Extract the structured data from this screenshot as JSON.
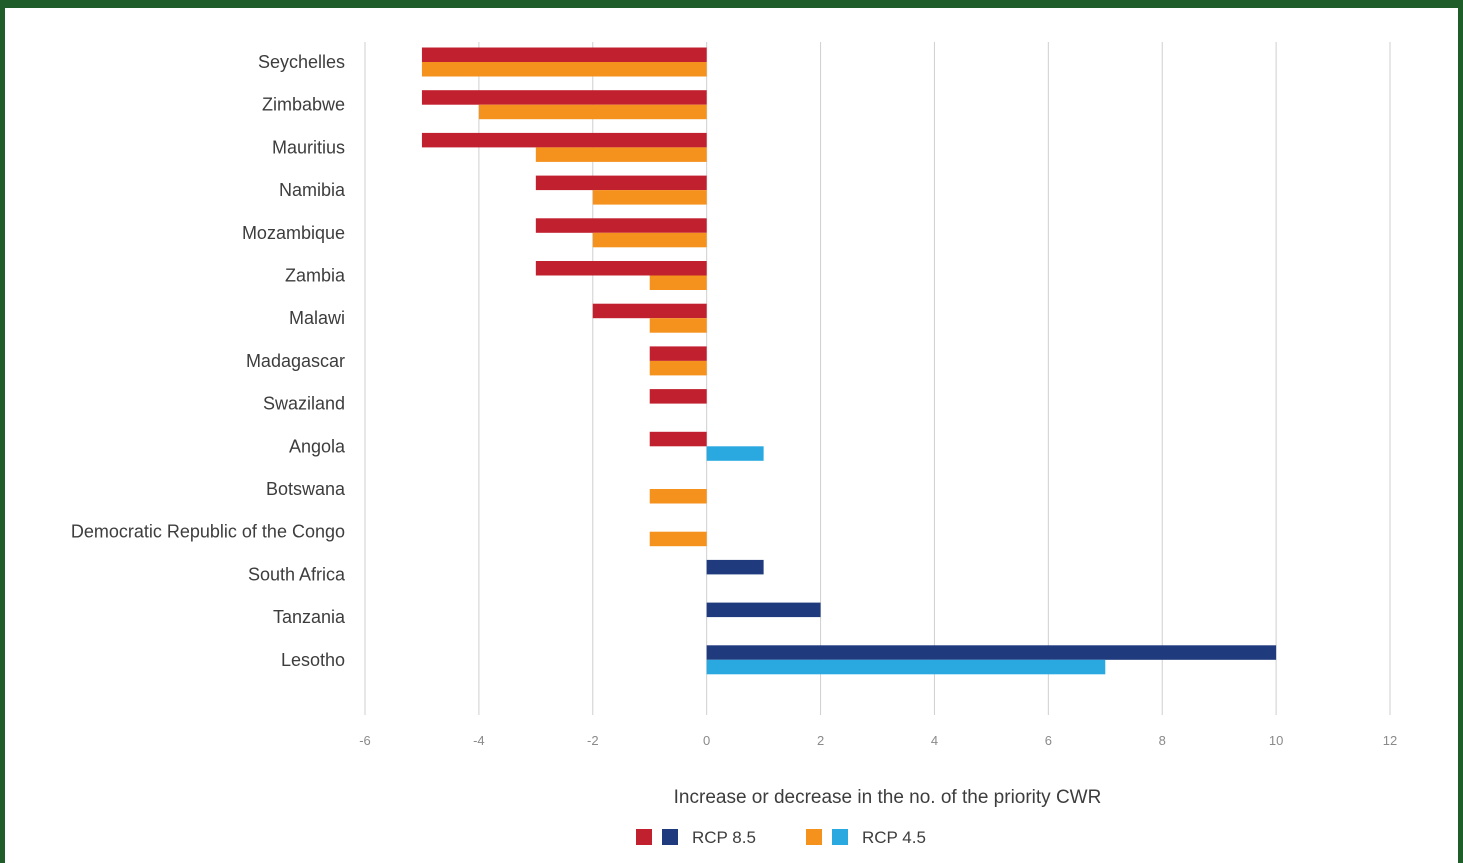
{
  "chart_data": {
    "type": "bar",
    "orientation": "horizontal",
    "categories": [
      "Seychelles",
      "Zimbabwe",
      "Mauritius",
      "Namibia",
      "Mozambique",
      "Zambia",
      "Malawi",
      "Madagascar",
      "Swaziland",
      "Angola",
      "Botswana",
      "Democratic Republic of the Congo",
      "South Africa",
      "Tanzania",
      "Lesotho"
    ],
    "series": [
      {
        "name": "RCP 8.5",
        "colors": {
          "negative": "#c1202f",
          "positive": "#1f3a7d"
        },
        "values": [
          -5,
          -5,
          -5,
          -3,
          -3,
          -3,
          -2,
          -1,
          -1,
          -1,
          0,
          0,
          1,
          2,
          10
        ]
      },
      {
        "name": "RCP 4.5",
        "colors": {
          "negative": "#f5921e",
          "positive": "#2aa9e0"
        },
        "values": [
          -5,
          -4,
          -3,
          -2,
          -2,
          -1,
          -1,
          -1,
          0,
          1,
          -1,
          -1,
          0,
          0,
          7
        ]
      }
    ],
    "xlim": [
      -6,
      12
    ],
    "xticks": [
      "-6",
      "-4",
      "-2",
      "0",
      "2",
      "4",
      "6",
      "8",
      "10",
      "12"
    ],
    "xlabel": "Increase or decrease in the no. of the priority CWR",
    "grid": "vertical",
    "legend_position": "bottom",
    "legend": [
      {
        "label": "RCP 8.5",
        "colors": [
          "#c1202f",
          "#1f3a7d"
        ]
      },
      {
        "label": "RCP 4.5",
        "colors": [
          "#f5921e",
          "#2aa9e0"
        ]
      }
    ]
  }
}
